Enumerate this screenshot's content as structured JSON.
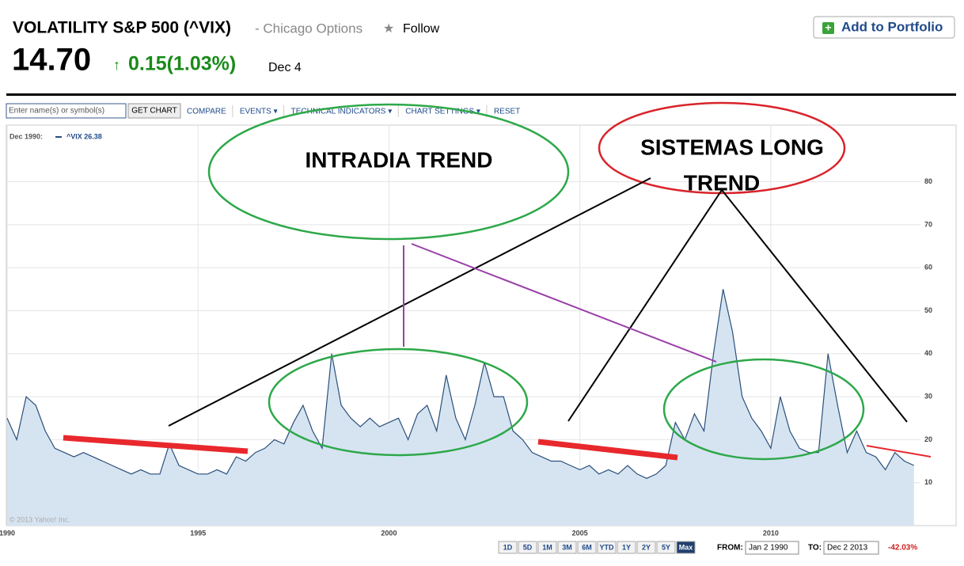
{
  "header": {
    "title": "VOLATILITY S&P 500 (^VIX)",
    "exchange": "- Chicago Options",
    "follow": "Follow",
    "portfolio": "Add to Portfolio",
    "price": "14.70",
    "change": "0.15(1.03%)",
    "date": "Dec 4"
  },
  "toolbar": {
    "input": "Enter name(s) or symbol(s)",
    "button": "GET CHART",
    "items": [
      "COMPARE",
      "EVENTS ▾",
      "TECHNICAL INDICATORS ▾",
      "CHART SETTINGS ▾",
      "RESET"
    ]
  },
  "legend": {
    "date": "Dec 1990:",
    "label": "^VIX 26.38"
  },
  "copyright": "© 2013 Yahoo! Inc.",
  "ranges": [
    "1D",
    "5D",
    "1M",
    "3M",
    "6M",
    "YTD",
    "1Y",
    "2Y",
    "5Y",
    "Max"
  ],
  "dates": {
    "from_label": "FROM:",
    "from": "Jan 2 1990",
    "to_label": "TO:",
    "to": "Dec 2 2013",
    "change": "-42.03%"
  },
  "annotations": [
    "INTRADIA TREND",
    "SISTEMAS LONG",
    "TREND"
  ],
  "chart_data": {
    "type": "area",
    "color": "#2a4f7a",
    "fill": "#d6e4f1",
    "grid": true,
    "x": [
      1990,
      1990.25,
      1990.5,
      1990.75,
      1991,
      1991.25,
      1991.5,
      1991.75,
      1992,
      1992.25,
      1992.5,
      1992.75,
      1993,
      1993.25,
      1993.5,
      1993.75,
      1994,
      1994.25,
      1994.5,
      1994.75,
      1995,
      1995.25,
      1995.5,
      1995.75,
      1996,
      1996.25,
      1996.5,
      1996.75,
      1997,
      1997.25,
      1997.5,
      1997.75,
      1998,
      1998.25,
      1998.5,
      1998.75,
      1999,
      1999.25,
      1999.5,
      1999.75,
      2000,
      2000.25,
      2000.5,
      2000.75,
      2001,
      2001.25,
      2001.5,
      2001.75,
      2002,
      2002.25,
      2002.5,
      2002.75,
      2003,
      2003.25,
      2003.5,
      2003.75,
      2004,
      2004.25,
      2004.5,
      2004.75,
      2005,
      2005.25,
      2005.5,
      2005.75,
      2006,
      2006.25,
      2006.5,
      2006.75,
      2007,
      2007.25,
      2007.5,
      2007.75,
      2008,
      2008.25,
      2008.5,
      2008.75,
      2009,
      2009.25,
      2009.5,
      2009.75,
      2010,
      2010.25,
      2010.5,
      2010.75,
      2011,
      2011.25,
      2011.5,
      2011.75,
      2012,
      2012.25,
      2012.5,
      2012.75,
      2013,
      2013.25,
      2013.5,
      2013.75
    ],
    "values": [
      25,
      20,
      30,
      28,
      22,
      18,
      17,
      16,
      17,
      16,
      15,
      14,
      13,
      12,
      13,
      12,
      12,
      19,
      14,
      13,
      12,
      12,
      13,
      12,
      16,
      15,
      17,
      18,
      20,
      19,
      24,
      28,
      22,
      18,
      40,
      28,
      25,
      23,
      25,
      23,
      24,
      25,
      20,
      26,
      28,
      22,
      35,
      25,
      20,
      28,
      38,
      30,
      30,
      22,
      20,
      17,
      16,
      15,
      15,
      14,
      13,
      14,
      12,
      13,
      12,
      14,
      12,
      11,
      12,
      14,
      24,
      20,
      26,
      22,
      40,
      55,
      45,
      30,
      25,
      22,
      18,
      30,
      22,
      18,
      17,
      17,
      40,
      28,
      17,
      22,
      17,
      16,
      13,
      17,
      15,
      14
    ],
    "xlim": [
      1990,
      2013.92
    ],
    "ylim": [
      0,
      93
    ],
    "xticks": [
      1990,
      1995,
      2000,
      2005,
      2010
    ],
    "yticks": [
      10,
      20,
      30,
      40,
      50,
      60,
      70,
      80
    ]
  }
}
